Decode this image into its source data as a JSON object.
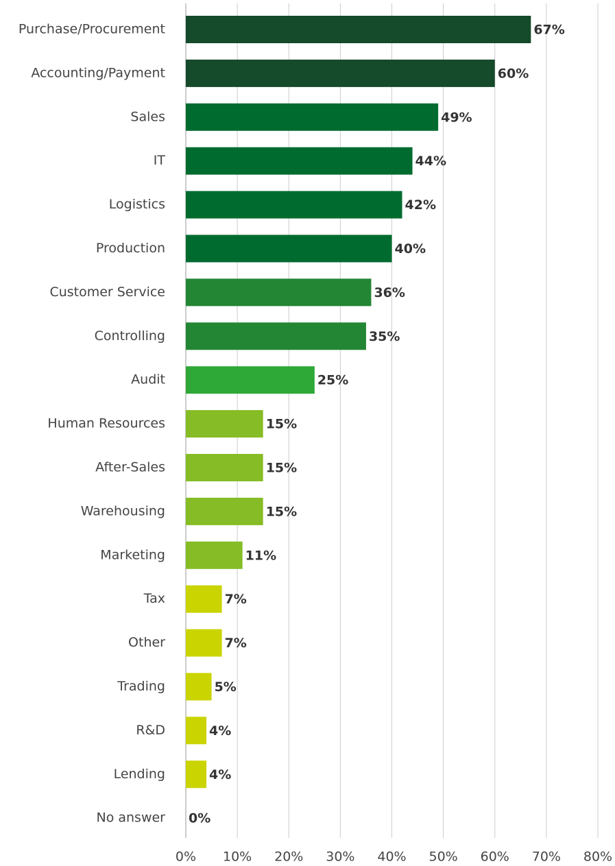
{
  "chart_data": {
    "type": "hbar",
    "categories": [
      "Purchase/Procurement",
      "Accounting/Payment",
      "Sales",
      "IT",
      "Logistics",
      "Production",
      "Customer Service",
      "Controlling",
      "Audit",
      "Human Resources",
      "After-Sales",
      "Warehousing",
      "Marketing",
      "Tax",
      "Other",
      "Trading",
      "R&D",
      "Lending",
      "No answer"
    ],
    "values": [
      67,
      60,
      49,
      44,
      42,
      40,
      36,
      35,
      25,
      15,
      15,
      15,
      11,
      7,
      7,
      5,
      4,
      4,
      0
    ],
    "value_labels": [
      "67%",
      "60%",
      "49%",
      "44%",
      "42%",
      "40%",
      "36%",
      "35%",
      "25%",
      "15%",
      "15%",
      "15%",
      "11%",
      "7%",
      "7%",
      "5%",
      "4%",
      "4%",
      "0%"
    ],
    "colors": [
      "#154a2a",
      "#154a2a",
      "#006b2f",
      "#006b2f",
      "#006b2f",
      "#006b2f",
      "#238634",
      "#238634",
      "#2ea836",
      "#86bc25",
      "#86bc25",
      "#86bc25",
      "#86bc25",
      "#cad400",
      "#cad400",
      "#cad400",
      "#cad400",
      "#cad400",
      "#cad400"
    ],
    "xlim": [
      0,
      80
    ],
    "xticks": [
      {
        "value": 0,
        "label": "0%"
      },
      {
        "value": 10,
        "label": "10%"
      },
      {
        "value": 20,
        "label": "20%"
      },
      {
        "value": 30,
        "label": "30%"
      },
      {
        "value": 40,
        "label": "40%"
      },
      {
        "value": 50,
        "label": "50%"
      },
      {
        "value": 60,
        "label": "60%"
      },
      {
        "value": 70,
        "label": "70%"
      },
      {
        "value": 80,
        "label": "80%"
      }
    ],
    "grid": true
  }
}
